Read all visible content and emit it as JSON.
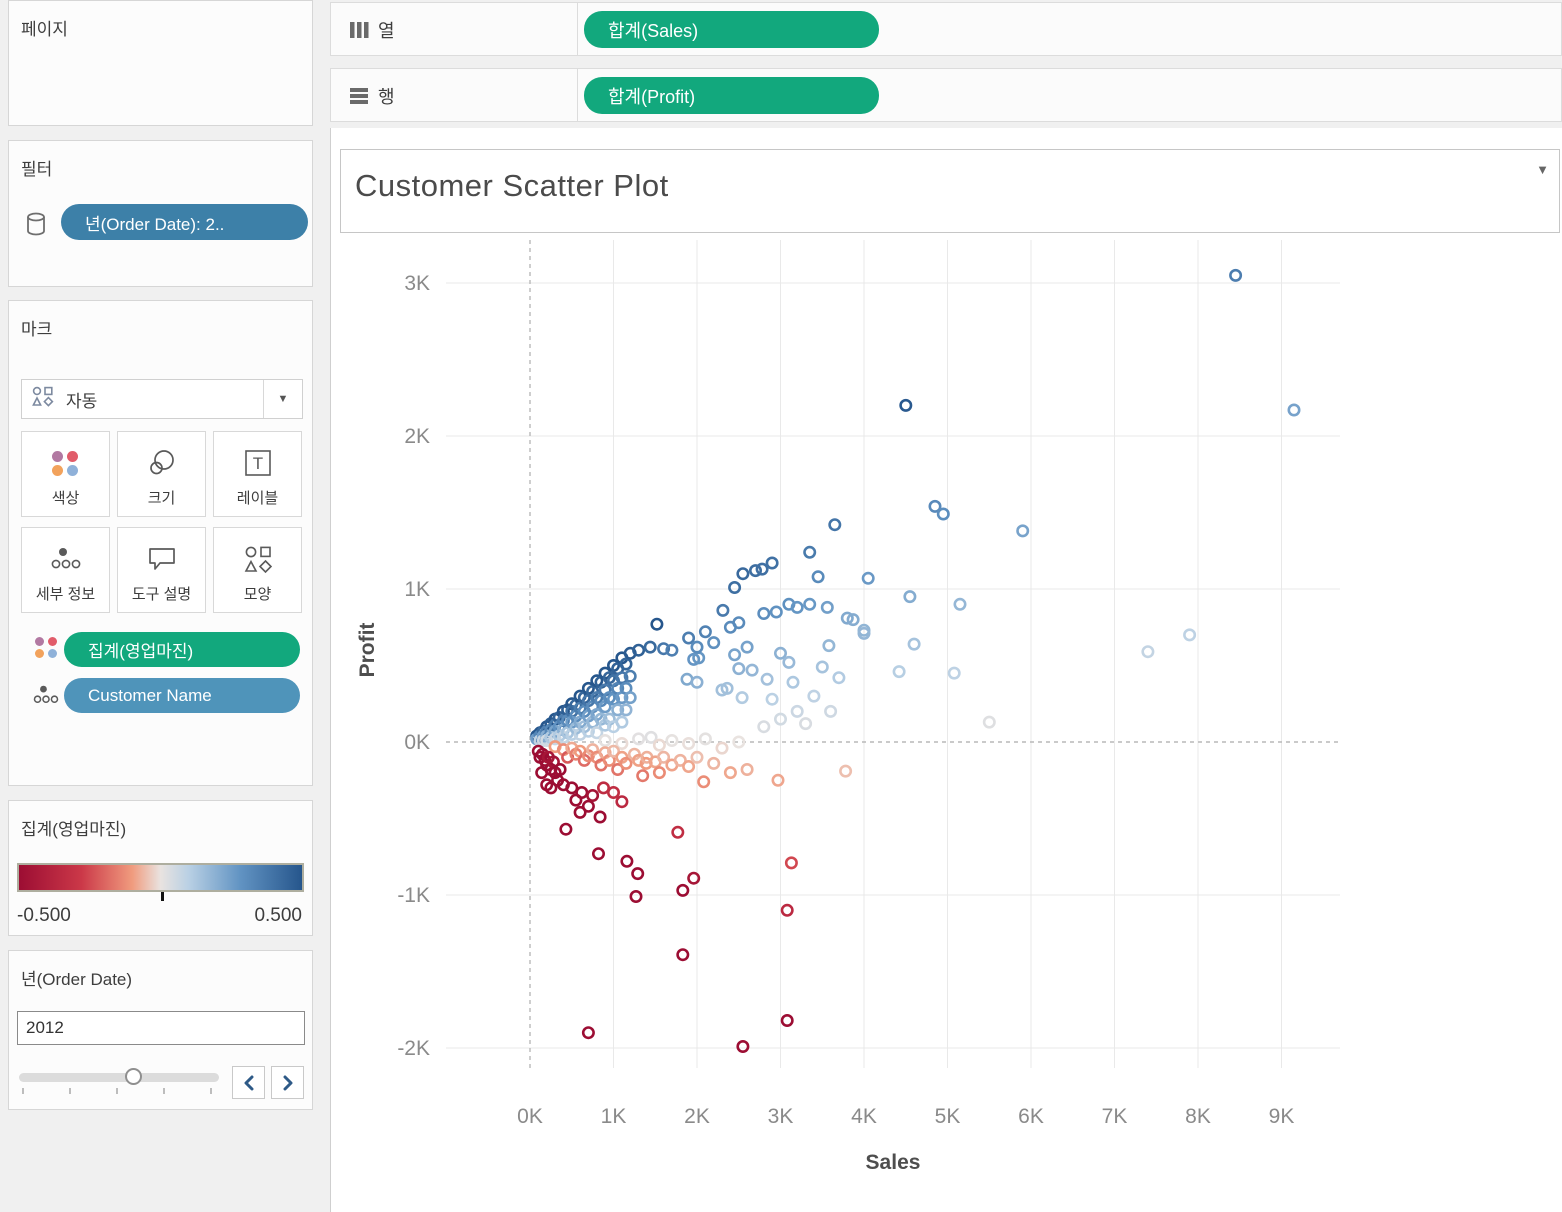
{
  "colors": {
    "accent_green": "#12a87d",
    "filter_pill_blue": "#3d80a8",
    "detail_pill_teal": "#4f94ba",
    "chevron_blue": "#2e5a87",
    "grid_gray": "#e9e9e9",
    "ref_line_gray": "#b9b9b9"
  },
  "shelves": {
    "columns": {
      "label": "열",
      "pill": "합계(Sales)"
    },
    "rows": {
      "label": "행",
      "pill": "합계(Profit)"
    }
  },
  "sidebar": {
    "pages": {
      "title": "페이지"
    },
    "filters": {
      "title": "필터",
      "pills": [
        {
          "label": "년(Order Date): 2.."
        }
      ]
    },
    "marks": {
      "title": "마크",
      "type_selector": {
        "label": "자동"
      },
      "buttons": [
        {
          "label": "색상"
        },
        {
          "label": "크기"
        },
        {
          "label": "레이블"
        },
        {
          "label": "세부 정보"
        },
        {
          "label": "도구 설명"
        },
        {
          "label": "모양"
        }
      ],
      "pills": [
        {
          "label": "집계(영업마진)",
          "role": "color"
        },
        {
          "label": "Customer Name",
          "role": "detail"
        }
      ]
    },
    "color_legend": {
      "title": "집계(영업마진)",
      "min_label": "-0.500",
      "max_label": "0.500"
    },
    "year_filter": {
      "title": "년(Order Date)",
      "value": "2012"
    }
  },
  "sheet": {
    "title": "Customer Scatter Plot"
  },
  "chart_data": {
    "type": "scatter",
    "title": "Customer Scatter Plot",
    "xlabel": "Sales",
    "ylabel": "Profit",
    "x_unit": "K",
    "y_unit": "K",
    "xlim": [
      -1.0,
      9.7
    ],
    "ylim": [
      -2.15,
      3.3
    ],
    "x_ticks": [
      "0K",
      "1K",
      "2K",
      "3K",
      "4K",
      "5K",
      "6K",
      "7K",
      "8K",
      "9K"
    ],
    "y_ticks": [
      "3K",
      "2K",
      "1K",
      "0K",
      "-1K",
      "-2K"
    ],
    "grid": true,
    "reference_lines": {
      "x_at": "0K",
      "y_at": "0K",
      "style": "dashed"
    },
    "legend_position": "left-sidebar",
    "color_scale": {
      "field": "집계(영업마진)",
      "domain": [
        -0.5,
        0.5
      ],
      "stops": [
        [
          -0.5,
          "#9c0d33"
        ],
        [
          -0.28,
          "#cb3848"
        ],
        [
          -0.1,
          "#f09b7e"
        ],
        [
          0,
          "#e9e3e0"
        ],
        [
          0.1,
          "#b9d0e4"
        ],
        [
          0.28,
          "#6294c3"
        ],
        [
          0.5,
          "#26568c"
        ]
      ]
    },
    "color_by": "profit_over_sales_ratio",
    "points": [
      [
        0.08,
        0.04
      ],
      [
        0.08,
        0.02
      ],
      [
        0.12,
        0.06
      ],
      [
        0.12,
        0.04
      ],
      [
        0.12,
        0.01
      ],
      [
        0.16,
        0.07
      ],
      [
        0.16,
        0.04
      ],
      [
        0.16,
        0.01
      ],
      [
        0.2,
        0.1
      ],
      [
        0.2,
        0.07
      ],
      [
        0.2,
        0.04
      ],
      [
        0.2,
        0.01
      ],
      [
        0.25,
        0.12
      ],
      [
        0.25,
        0.08
      ],
      [
        0.25,
        0.03
      ],
      [
        0.3,
        0.15
      ],
      [
        0.3,
        0.11
      ],
      [
        0.3,
        0.07
      ],
      [
        0.3,
        0.02
      ],
      [
        0.35,
        0.16
      ],
      [
        0.35,
        0.1
      ],
      [
        0.35,
        0.04
      ],
      [
        0.4,
        0.2
      ],
      [
        0.4,
        0.14
      ],
      [
        0.4,
        0.08
      ],
      [
        0.4,
        0.03
      ],
      [
        0.45,
        0.21
      ],
      [
        0.45,
        0.14
      ],
      [
        0.45,
        0.06
      ],
      [
        0.5,
        0.25
      ],
      [
        0.5,
        0.2
      ],
      [
        0.5,
        0.13
      ],
      [
        0.5,
        0.05
      ],
      [
        0.55,
        0.24
      ],
      [
        0.55,
        0.17
      ],
      [
        0.55,
        0.09
      ],
      [
        0.6,
        0.3
      ],
      [
        0.6,
        0.22
      ],
      [
        0.6,
        0.13
      ],
      [
        0.6,
        0.05
      ],
      [
        0.65,
        0.29
      ],
      [
        0.65,
        0.2
      ],
      [
        0.65,
        0.1
      ],
      [
        0.7,
        0.35
      ],
      [
        0.7,
        0.27
      ],
      [
        0.7,
        0.17
      ],
      [
        0.7,
        0.07
      ],
      [
        0.75,
        0.33
      ],
      [
        0.75,
        0.23
      ],
      [
        0.75,
        0.13
      ],
      [
        0.8,
        0.4
      ],
      [
        0.8,
        0.29
      ],
      [
        0.8,
        0.18
      ],
      [
        0.8,
        0.06
      ],
      [
        0.85,
        0.39
      ],
      [
        0.85,
        0.27
      ],
      [
        0.85,
        0.15
      ],
      [
        0.9,
        0.45
      ],
      [
        0.9,
        0.34
      ],
      [
        0.9,
        0.23
      ],
      [
        0.9,
        0.11
      ],
      [
        0.95,
        0.42
      ],
      [
        0.95,
        0.29
      ],
      [
        0.95,
        0.15
      ],
      [
        1.0,
        0.5
      ],
      [
        1.0,
        0.4
      ],
      [
        1.0,
        0.28
      ],
      [
        1.0,
        0.1
      ],
      [
        1.05,
        0.48
      ],
      [
        1.05,
        0.35
      ],
      [
        1.05,
        0.21
      ],
      [
        1.1,
        0.55
      ],
      [
        1.1,
        0.42
      ],
      [
        1.1,
        0.29
      ],
      [
        1.1,
        0.13
      ],
      [
        1.15,
        0.51
      ],
      [
        1.15,
        0.35
      ],
      [
        1.15,
        0.21
      ],
      [
        1.2,
        0.58
      ],
      [
        1.2,
        0.43
      ],
      [
        1.2,
        0.29
      ],
      [
        0.9,
        0.01
      ],
      [
        1.1,
        -0.01
      ],
      [
        1.3,
        0.02
      ],
      [
        1.45,
        0.03
      ],
      [
        1.55,
        -0.02
      ],
      [
        1.7,
        0.01
      ],
      [
        1.9,
        -0.01
      ],
      [
        2.1,
        0.02
      ],
      [
        2.3,
        -0.04
      ],
      [
        2.5,
        0.0
      ],
      [
        0.3,
        -0.03
      ],
      [
        0.4,
        -0.05
      ],
      [
        0.45,
        -0.1
      ],
      [
        0.5,
        -0.04
      ],
      [
        0.55,
        -0.08
      ],
      [
        0.6,
        -0.06
      ],
      [
        0.65,
        -0.12
      ],
      [
        0.7,
        -0.09
      ],
      [
        0.75,
        -0.05
      ],
      [
        0.8,
        -0.1
      ],
      [
        0.85,
        -0.15
      ],
      [
        0.9,
        -0.07
      ],
      [
        0.95,
        -0.12
      ],
      [
        1.0,
        -0.06
      ],
      [
        1.05,
        -0.18
      ],
      [
        1.1,
        -0.1
      ],
      [
        1.15,
        -0.14
      ],
      [
        1.25,
        -0.08
      ],
      [
        1.3,
        -0.12
      ],
      [
        1.35,
        -0.22
      ],
      [
        1.39,
        -0.14
      ],
      [
        1.4,
        -0.1
      ],
      [
        1.5,
        -0.13
      ],
      [
        1.55,
        -0.2
      ],
      [
        1.6,
        -0.1
      ],
      [
        1.7,
        -0.15
      ],
      [
        1.8,
        -0.12
      ],
      [
        1.9,
        -0.16
      ],
      [
        2.0,
        -0.1
      ],
      [
        2.08,
        -0.26
      ],
      [
        2.2,
        -0.14
      ],
      [
        2.4,
        -0.2
      ],
      [
        2.6,
        -0.18
      ],
      [
        2.97,
        -0.25
      ],
      [
        3.78,
        -0.19
      ],
      [
        0.1,
        -0.06
      ],
      [
        0.12,
        -0.1
      ],
      [
        0.14,
        -0.2
      ],
      [
        0.15,
        -0.08
      ],
      [
        0.18,
        -0.12
      ],
      [
        0.2,
        -0.15
      ],
      [
        0.2,
        -0.28
      ],
      [
        0.22,
        -0.1
      ],
      [
        0.25,
        -0.18
      ],
      [
        0.25,
        -0.3
      ],
      [
        0.28,
        -0.13
      ],
      [
        0.3,
        -0.2
      ],
      [
        0.33,
        -0.25
      ],
      [
        0.36,
        -0.18
      ],
      [
        0.4,
        -0.28
      ],
      [
        0.43,
        -0.57
      ],
      [
        0.5,
        -0.3
      ],
      [
        0.55,
        -0.38
      ],
      [
        0.6,
        -0.46
      ],
      [
        0.62,
        -0.33
      ],
      [
        0.7,
        -0.42
      ],
      [
        0.75,
        -0.35
      ],
      [
        0.82,
        -0.73
      ],
      [
        0.84,
        -0.49
      ],
      [
        0.88,
        -0.3
      ],
      [
        1.0,
        -0.33
      ],
      [
        1.1,
        -0.39
      ],
      [
        1.16,
        -0.78
      ],
      [
        1.27,
        -1.01
      ],
      [
        1.29,
        -0.86
      ],
      [
        1.77,
        -0.59
      ],
      [
        1.83,
        -0.97
      ],
      [
        1.96,
        -0.89
      ],
      [
        3.08,
        -1.1
      ],
      [
        3.13,
        -0.79
      ],
      [
        0.7,
        -1.9
      ],
      [
        1.83,
        -1.39
      ],
      [
        2.55,
        -1.99
      ],
      [
        3.08,
        -1.82
      ],
      [
        1.3,
        0.6
      ],
      [
        1.44,
        0.62
      ],
      [
        1.52,
        0.77
      ],
      [
        1.6,
        0.61
      ],
      [
        1.7,
        0.6
      ],
      [
        1.88,
        0.41
      ],
      [
        1.9,
        0.68
      ],
      [
        1.96,
        0.54
      ],
      [
        2.02,
        0.55
      ],
      [
        2.0,
        0.39
      ],
      [
        2.2,
        0.65
      ],
      [
        2.3,
        0.34
      ],
      [
        2.36,
        0.35
      ],
      [
        2.45,
        0.57
      ],
      [
        2.5,
        0.48
      ],
      [
        2.54,
        0.29
      ],
      [
        2.6,
        0.62
      ],
      [
        2.66,
        0.47
      ],
      [
        2.84,
        0.41
      ],
      [
        3.0,
        0.58
      ],
      [
        3.1,
        0.52
      ],
      [
        3.15,
        0.39
      ],
      [
        3.5,
        0.49
      ],
      [
        3.58,
        0.63
      ],
      [
        2.8,
        0.1
      ],
      [
        2.9,
        0.28
      ],
      [
        3.0,
        0.15
      ],
      [
        3.2,
        0.2
      ],
      [
        3.3,
        0.12
      ],
      [
        3.4,
        0.3
      ],
      [
        3.6,
        0.2
      ],
      [
        3.7,
        0.42
      ],
      [
        2.0,
        0.62
      ],
      [
        2.1,
        0.72
      ],
      [
        2.31,
        0.86
      ],
      [
        2.4,
        0.75
      ],
      [
        2.5,
        0.78
      ],
      [
        2.45,
        1.01
      ],
      [
        2.55,
        1.1
      ],
      [
        2.7,
        1.12
      ],
      [
        2.78,
        1.13
      ],
      [
        2.9,
        1.17
      ],
      [
        2.8,
        0.84
      ],
      [
        2.95,
        0.85
      ],
      [
        3.1,
        0.9
      ],
      [
        3.2,
        0.88
      ],
      [
        3.35,
        0.9
      ],
      [
        3.35,
        1.24
      ],
      [
        3.45,
        1.08
      ],
      [
        3.56,
        0.88
      ],
      [
        3.65,
        1.42
      ],
      [
        3.8,
        0.81
      ],
      [
        3.87,
        0.8
      ],
      [
        4.0,
        0.73
      ],
      [
        4.0,
        0.71
      ],
      [
        4.05,
        1.07
      ],
      [
        4.42,
        0.46
      ],
      [
        4.55,
        0.95
      ],
      [
        4.6,
        0.64
      ],
      [
        4.85,
        1.54
      ],
      [
        4.95,
        1.49
      ],
      [
        5.08,
        0.45
      ],
      [
        5.15,
        0.9
      ],
      [
        5.5,
        0.13
      ],
      [
        5.9,
        1.38
      ],
      [
        7.4,
        0.59
      ],
      [
        7.9,
        0.7
      ],
      [
        4.5,
        2.2
      ],
      [
        8.45,
        3.05
      ],
      [
        9.15,
        2.17
      ]
    ]
  }
}
